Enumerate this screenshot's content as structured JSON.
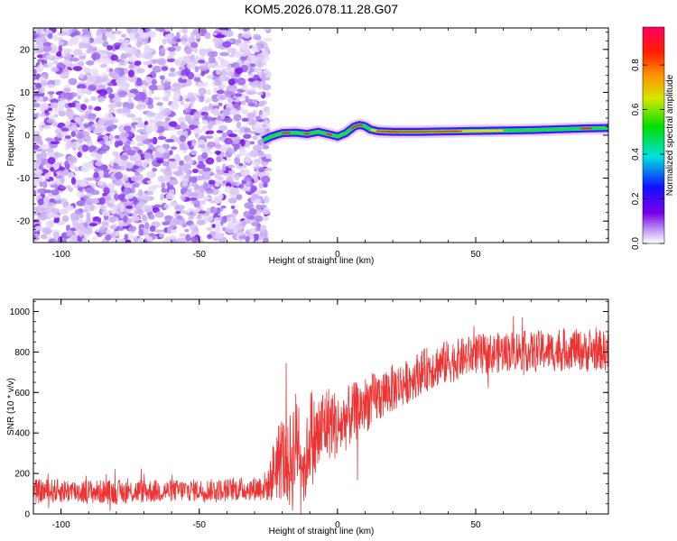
{
  "title": "KOM5.2026.078.11.28.G07",
  "chart_data": [
    {
      "type": "heatmap",
      "title": "KOM5.2026.078.11.28.G07",
      "xlabel": "Height of straight line (km)",
      "ylabel": "Frequency (Hz)",
      "xlim": [
        -110,
        98
      ],
      "ylim": [
        -25,
        25
      ],
      "xticks": [
        -100,
        -50,
        0,
        50
      ],
      "yticks": [
        20,
        10,
        0,
        -10,
        -20
      ],
      "xtick_labels": [
        "-100",
        "-50",
        "0",
        "50"
      ],
      "ytick_labels": [
        "20",
        "10",
        "0",
        "-10",
        "-20"
      ],
      "noise_region_x": [
        -110,
        -27
      ],
      "signal_trace": {
        "x": [
          -27,
          -24,
          -20,
          -15,
          -11,
          -7,
          -3,
          0,
          3,
          6,
          8,
          10,
          12,
          15,
          20,
          30,
          40,
          50,
          60,
          70,
          80,
          90,
          98
        ],
        "freq_hz": [
          -1.2,
          -0.3,
          0.5,
          0.6,
          0.3,
          0.8,
          0.2,
          -0.3,
          0.5,
          2.0,
          2.4,
          2.1,
          1.3,
          0.9,
          0.8,
          0.8,
          0.9,
          1.0,
          1.1,
          1.2,
          1.4,
          1.6,
          1.7
        ]
      },
      "colorbar": {
        "label": "Normalized spectral amplitude",
        "range": [
          0.0,
          0.97
        ],
        "ticks": [
          0.0,
          0.2,
          0.4,
          0.6,
          0.8
        ],
        "tick_labels": [
          "0.0",
          "0.2",
          "0.4",
          "0.6",
          "0.8"
        ]
      }
    },
    {
      "type": "line",
      "xlabel": "Height of straight line (km)",
      "ylabel": "SNR (10 * v/v)",
      "xlim": [
        -110,
        98
      ],
      "ylim": [
        0,
        1060
      ],
      "xticks": [
        -100,
        -50,
        0,
        50
      ],
      "yticks": [
        0,
        200,
        400,
        600,
        800,
        1000
      ],
      "xtick_labels": [
        "-100",
        "-50",
        "0",
        "50"
      ],
      "ytick_labels": [
        "0",
        "200",
        "400",
        "600",
        "800",
        "1000"
      ],
      "color": "#ee3333",
      "series": [
        {
          "name": "SNR",
          "x": [
            -110,
            -100,
            -90,
            -80,
            -70,
            -60,
            -50,
            -40,
            -30,
            -25,
            -22,
            -20,
            -18,
            -16,
            -14,
            -12,
            -10,
            -8,
            -5,
            -2,
            0,
            3,
            6,
            10,
            15,
            20,
            25,
            30,
            35,
            40,
            45,
            50,
            55,
            60,
            65,
            70,
            75,
            80,
            85,
            90,
            95,
            98
          ],
          "values": [
            110,
            115,
            110,
            108,
            112,
            115,
            118,
            120,
            125,
            140,
            260,
            280,
            230,
            300,
            390,
            180,
            410,
            350,
            440,
            460,
            420,
            470,
            500,
            540,
            580,
            620,
            650,
            700,
            730,
            750,
            770,
            790,
            790,
            800,
            810,
            800,
            810,
            800,
            820,
            800,
            810,
            800
          ],
          "noise_amplitude": [
            60,
            60,
            60,
            60,
            60,
            55,
            55,
            55,
            60,
            80,
            200,
            220,
            200,
            300,
            250,
            150,
            250,
            220,
            200,
            180,
            170,
            160,
            150,
            140,
            130,
            120,
            110,
            110,
            110,
            110,
            100,
            100,
            100,
            100,
            100,
            100,
            100,
            100,
            100,
            100,
            100,
            100
          ]
        }
      ]
    }
  ]
}
